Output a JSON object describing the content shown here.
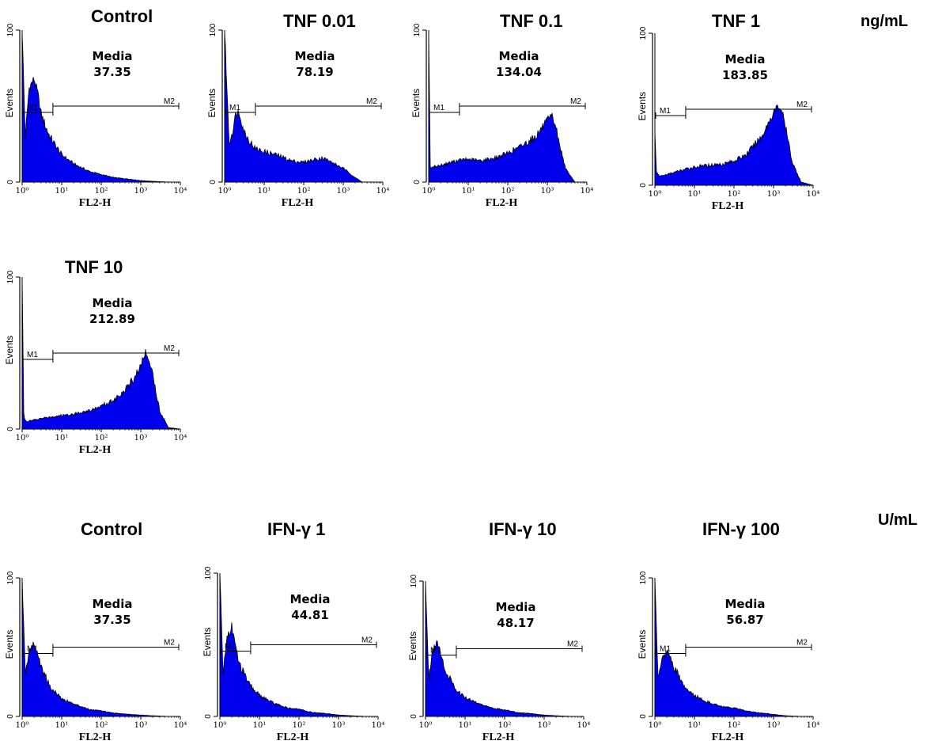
{
  "units": {
    "tnf": "ng/mL",
    "ifn": "U/mL"
  },
  "axis_common": {
    "ylabel": "Events",
    "xlabel": "FL2-H",
    "y_ticks": [
      "0",
      "100"
    ],
    "x_ticks": [
      "10⁰",
      "10¹",
      "10²",
      "10³",
      "10⁴"
    ],
    "stat_label": "Media",
    "marker1": "M1",
    "marker2": "M2"
  },
  "colors": {
    "fill": "#0000ee",
    "stroke": "#000000"
  },
  "chart_data": [
    {
      "type": "area",
      "title": "Control",
      "median_label": "Media",
      "median": "37.35",
      "xscale": "log",
      "xlim": [
        1,
        10000
      ],
      "ylim": [
        0,
        100
      ],
      "xlabel": "FL2-H",
      "ylabel": "Events",
      "markers": [
        {
          "name": "M1",
          "range": [
            1,
            6
          ]
        },
        {
          "name": "M2",
          "range": [
            6,
            10000
          ]
        }
      ],
      "x": [
        1,
        1.2,
        1.5,
        2,
        2.5,
        3,
        4,
        5,
        7,
        10,
        20,
        50,
        100,
        200,
        500,
        1000,
        2000,
        5000,
        10000
      ],
      "values": [
        100,
        30,
        62,
        68,
        58,
        45,
        36,
        30,
        24,
        18,
        12,
        7,
        5,
        3,
        2,
        1,
        0.5,
        0,
        0
      ]
    },
    {
      "type": "area",
      "title": "TNF 0.01",
      "median_label": "Media",
      "median": "78.19",
      "xscale": "log",
      "xlim": [
        1,
        10000
      ],
      "ylim": [
        0,
        100
      ],
      "xlabel": "FL2-H",
      "ylabel": "Events",
      "markers": [
        {
          "name": "M1",
          "range": [
            1,
            6
          ]
        },
        {
          "name": "M2",
          "range": [
            6,
            10000
          ]
        }
      ],
      "x": [
        1,
        1.3,
        1.6,
        2,
        2.5,
        3,
        4,
        6,
        10,
        20,
        50,
        100,
        200,
        300,
        500,
        1000,
        2000,
        3000,
        10000
      ],
      "values": [
        100,
        25,
        34,
        47,
        44,
        34,
        28,
        22,
        20,
        18,
        14,
        13,
        15,
        16,
        13,
        9,
        3,
        0,
        0
      ]
    },
    {
      "type": "area",
      "title": "TNF 0.1",
      "median_label": "Media",
      "median": "134.04",
      "xscale": "log",
      "xlim": [
        1,
        10000
      ],
      "ylim": [
        0,
        100
      ],
      "xlabel": "FL2-H",
      "ylabel": "Events",
      "markers": [
        {
          "name": "M1",
          "range": [
            1,
            6
          ]
        },
        {
          "name": "M2",
          "range": [
            6,
            10000
          ]
        }
      ],
      "x": [
        1,
        1.1,
        1.3,
        2,
        5,
        10,
        20,
        50,
        100,
        200,
        500,
        1000,
        1300,
        1600,
        2000,
        3000,
        5000,
        10000
      ],
      "values": [
        100,
        8,
        10,
        11,
        14,
        15,
        14,
        16,
        19,
        23,
        30,
        40,
        43,
        38,
        25,
        8,
        0,
        0
      ]
    },
    {
      "type": "area",
      "title": "TNF 1",
      "median_label": "Media",
      "median": "183.85",
      "xscale": "log",
      "xlim": [
        1,
        10000
      ],
      "ylim": [
        0,
        100
      ],
      "xlabel": "FL2-H",
      "ylabel": "Events",
      "markers": [
        {
          "name": "M1",
          "range": [
            1,
            6
          ]
        },
        {
          "name": "M2",
          "range": [
            6,
            10000
          ]
        }
      ],
      "x": [
        1,
        1.1,
        1.3,
        2,
        5,
        10,
        20,
        50,
        100,
        200,
        500,
        1000,
        1300,
        1600,
        2000,
        3000,
        5000,
        10000
      ],
      "values": [
        35,
        8,
        6,
        7,
        10,
        12,
        13,
        14,
        16,
        20,
        32,
        48,
        52,
        50,
        38,
        15,
        2,
        0
      ]
    },
    {
      "type": "area",
      "title": "TNF 10",
      "median_label": "Media",
      "median": "212.89",
      "xscale": "log",
      "xlim": [
        1,
        10000
      ],
      "ylim": [
        0,
        100
      ],
      "xlabel": "FL2-H",
      "ylabel": "Events",
      "markers": [
        {
          "name": "M1",
          "range": [
            1,
            6
          ]
        },
        {
          "name": "M2",
          "range": [
            6,
            10000
          ]
        }
      ],
      "x": [
        1,
        1.1,
        1.3,
        2,
        5,
        10,
        20,
        50,
        100,
        200,
        500,
        1000,
        1300,
        1600,
        2000,
        3000,
        5000,
        10000
      ],
      "values": [
        100,
        8,
        5,
        6,
        8,
        9,
        10,
        12,
        15,
        19,
        28,
        42,
        50,
        48,
        36,
        12,
        1,
        0
      ]
    },
    {
      "type": "area",
      "title": "Control",
      "median_label": "Media",
      "median": "37.35",
      "xscale": "log",
      "xlim": [
        1,
        10000
      ],
      "ylim": [
        0,
        100
      ],
      "xlabel": "FL2-H",
      "ylabel": "Events",
      "markers": [
        {
          "name": "M1",
          "range": [
            1,
            6
          ]
        },
        {
          "name": "M2",
          "range": [
            6,
            10000
          ]
        }
      ],
      "x": [
        1,
        1.2,
        1.5,
        2,
        2.5,
        3,
        4,
        5,
        7,
        10,
        20,
        50,
        100,
        200,
        500,
        1000,
        2000,
        5000,
        10000
      ],
      "values": [
        100,
        30,
        48,
        52,
        45,
        36,
        28,
        22,
        17,
        13,
        9,
        5,
        4,
        2.5,
        1.5,
        1,
        0.5,
        0,
        0
      ]
    },
    {
      "type": "area",
      "title": "IFN-γ 1",
      "median_label": "Media",
      "median": "44.81",
      "xscale": "log",
      "xlim": [
        1,
        10000
      ],
      "ylim": [
        0,
        100
      ],
      "xlabel": "FL2-H",
      "ylabel": "Events",
      "markers": [
        {
          "name": "M1",
          "range": [
            1,
            6
          ]
        },
        {
          "name": "M2",
          "range": [
            6,
            10000
          ]
        }
      ],
      "x": [
        1,
        1.2,
        1.5,
        2,
        2.5,
        3,
        4,
        5,
        7,
        10,
        20,
        50,
        100,
        200,
        500,
        1000,
        2000,
        5000,
        10000
      ],
      "values": [
        100,
        30,
        55,
        63,
        48,
        38,
        30,
        24,
        19,
        15,
        10,
        6,
        5,
        3,
        2,
        1,
        0.5,
        0,
        0
      ]
    },
    {
      "type": "area",
      "title": "IFN-γ 10",
      "median_label": "Media",
      "median": "48.17",
      "xscale": "log",
      "xlim": [
        1,
        10000
      ],
      "ylim": [
        0,
        100
      ],
      "xlabel": "FL2-H",
      "ylabel": "Events",
      "markers": [
        {
          "name": "M1",
          "range": [
            1,
            6
          ]
        },
        {
          "name": "M2",
          "range": [
            6,
            10000
          ]
        }
      ],
      "x": [
        1,
        1.2,
        1.5,
        2,
        2.5,
        3,
        4,
        5,
        7,
        10,
        20,
        50,
        100,
        200,
        500,
        1000,
        2000,
        5000,
        10000
      ],
      "values": [
        100,
        28,
        50,
        56,
        44,
        36,
        29,
        23,
        18,
        14,
        10,
        6,
        5,
        3,
        2,
        1,
        0.5,
        0,
        0
      ]
    },
    {
      "type": "area",
      "title": "IFN-γ 100",
      "median_label": "Media",
      "median": "56.87",
      "xscale": "log",
      "xlim": [
        1,
        10000
      ],
      "ylim": [
        0,
        100
      ],
      "xlabel": "FL2-H",
      "ylabel": "Events",
      "markers": [
        {
          "name": "M1",
          "range": [
            1,
            6
          ]
        },
        {
          "name": "M2",
          "range": [
            6,
            10000
          ]
        }
      ],
      "x": [
        1,
        1.2,
        1.5,
        2,
        2.5,
        3,
        4,
        5,
        7,
        10,
        20,
        50,
        100,
        200,
        500,
        1000,
        2000,
        5000,
        10000
      ],
      "values": [
        100,
        28,
        42,
        46,
        44,
        36,
        29,
        23,
        18,
        15,
        11,
        7,
        6,
        4,
        2.5,
        1.5,
        0.5,
        0,
        0
      ]
    }
  ]
}
